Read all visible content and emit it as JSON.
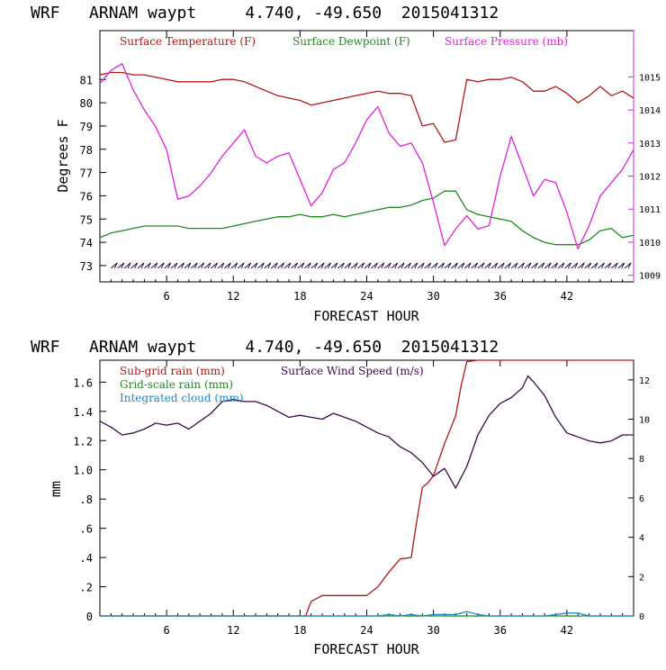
{
  "colors": {
    "temperature": "#b01818",
    "dewpoint": "#228822",
    "pressure": "#e020e0",
    "subgrid_rain": "#b01818",
    "grid_rain": "#228822",
    "cloud": "#1a88c8",
    "wind": "#3c0a4a",
    "axis_left": "#000000",
    "axis_right": "#e020e0"
  },
  "chart_data": [
    {
      "type": "line",
      "title": "WRF   ARNAM waypt     4.740, -49.650  2015041312",
      "xlabel": "FORECAST HOUR",
      "ylabel": "Degrees F",
      "xlim": [
        0,
        48
      ],
      "xticks": [
        6,
        12,
        18,
        24,
        30,
        36,
        42
      ],
      "ylim": [
        72.3,
        83.1
      ],
      "yticks": [
        73,
        74,
        75,
        76,
        77,
        78,
        79,
        80,
        81
      ],
      "y2lim": [
        1008.8,
        1016.4
      ],
      "y2ticks": [
        1009,
        1010,
        1011,
        1012,
        1013,
        1014,
        1015
      ],
      "series": [
        {
          "name": "Surface Temperature (F)",
          "axis": "left",
          "x": [
            0,
            1,
            2,
            3,
            4,
            5,
            6,
            7,
            8,
            9,
            10,
            11,
            12,
            13,
            14,
            15,
            16,
            17,
            18,
            19,
            20,
            21,
            22,
            23,
            24,
            25,
            26,
            27,
            28,
            29,
            30,
            31,
            32,
            33,
            34,
            35,
            36,
            37,
            38,
            39,
            40,
            41,
            42,
            43,
            44,
            45,
            46,
            47,
            48
          ],
          "values": [
            81.2,
            81.3,
            81.3,
            81.2,
            81.2,
            81.1,
            81.0,
            80.9,
            80.9,
            80.9,
            80.9,
            81.0,
            81.0,
            80.9,
            80.7,
            80.5,
            80.3,
            80.2,
            80.1,
            79.9,
            80.0,
            80.1,
            80.2,
            80.3,
            80.4,
            80.5,
            80.4,
            80.4,
            80.3,
            79.0,
            79.1,
            78.3,
            78.4,
            81.0,
            80.9,
            81.0,
            81.0,
            81.1,
            80.9,
            80.5,
            80.5,
            80.7,
            80.4,
            80.0,
            80.3,
            80.7,
            80.3,
            80.5,
            80.2
          ]
        },
        {
          "name": "Surface Dewpoint (F)",
          "axis": "left",
          "x": [
            0,
            1,
            2,
            3,
            4,
            5,
            6,
            7,
            8,
            9,
            10,
            11,
            12,
            13,
            14,
            15,
            16,
            17,
            18,
            19,
            20,
            21,
            22,
            23,
            24,
            25,
            26,
            27,
            28,
            29,
            30,
            31,
            32,
            33,
            34,
            35,
            36,
            37,
            38,
            39,
            40,
            41,
            42,
            43,
            44,
            45,
            46,
            47,
            48
          ],
          "values": [
            74.2,
            74.4,
            74.5,
            74.6,
            74.7,
            74.7,
            74.7,
            74.7,
            74.6,
            74.6,
            74.6,
            74.6,
            74.7,
            74.8,
            74.9,
            75.0,
            75.1,
            75.1,
            75.2,
            75.1,
            75.1,
            75.2,
            75.1,
            75.2,
            75.3,
            75.4,
            75.5,
            75.5,
            75.6,
            75.8,
            75.9,
            76.2,
            76.2,
            75.4,
            75.2,
            75.1,
            75.0,
            74.9,
            74.5,
            74.2,
            74.0,
            73.9,
            73.9,
            73.9,
            74.1,
            74.5,
            74.6,
            74.2,
            74.3
          ]
        },
        {
          "name": "Surface Pressure (mb)",
          "axis": "right",
          "x": [
            0,
            1,
            2,
            3,
            4,
            5,
            6,
            7,
            8,
            9,
            10,
            11,
            12,
            13,
            14,
            15,
            16,
            17,
            18,
            19,
            20,
            21,
            22,
            23,
            24,
            25,
            26,
            27,
            28,
            29,
            30,
            31,
            32,
            33,
            34,
            35,
            36,
            37,
            38,
            39,
            40,
            41,
            42,
            43,
            44,
            45,
            46,
            47,
            48
          ],
          "values": [
            1014.8,
            1015.2,
            1015.4,
            1014.6,
            1014.0,
            1013.5,
            1012.8,
            1011.3,
            1011.4,
            1011.7,
            1012.1,
            1012.6,
            1013.0,
            1013.4,
            1012.6,
            1012.4,
            1012.6,
            1012.7,
            1011.9,
            1011.1,
            1011.5,
            1012.2,
            1012.4,
            1013.0,
            1013.7,
            1014.1,
            1013.3,
            1012.9,
            1013.0,
            1012.4,
            1011.2,
            1009.9,
            1010.4,
            1010.8,
            1010.4,
            1010.5,
            1012.0,
            1013.2,
            1012.3,
            1011.4,
            1011.9,
            1011.8,
            1010.9,
            1009.8,
            1010.5,
            1011.4,
            1011.8,
            1012.2,
            1012.8
          ]
        }
      ],
      "annotations": [
        "wind barbs along 73 °F line"
      ]
    },
    {
      "type": "line",
      "title": "WRF   ARNAM waypt     4.740, -49.650  2015041312",
      "xlabel": "FORECAST HOUR",
      "ylabel": "mm",
      "xlim": [
        0,
        48
      ],
      "xticks": [
        6,
        12,
        18,
        24,
        30,
        36,
        42
      ],
      "ylim": [
        0,
        1.75
      ],
      "yticks": [
        0,
        0.2,
        0.4,
        0.6,
        0.8,
        1.0,
        1.2,
        1.4,
        1.6
      ],
      "ytick_labels": [
        "0",
        ".2",
        ".4",
        ".6",
        ".8",
        "1.0",
        "1.2",
        "1.4",
        "1.6"
      ],
      "y2lim": [
        0,
        13.0
      ],
      "y2ticks": [
        0,
        2,
        4,
        6,
        8,
        10,
        12
      ],
      "series": [
        {
          "name": "Sub-grid rain (mm)",
          "axis": "left",
          "x": [
            0,
            18.5,
            19,
            20,
            21,
            22,
            23,
            24,
            25,
            26,
            27,
            28,
            28.5,
            29,
            29.5,
            30,
            31,
            32,
            32.5,
            33,
            34,
            36,
            40,
            44,
            48
          ],
          "values": [
            0,
            0,
            0.1,
            0.14,
            0.14,
            0.14,
            0.14,
            0.14,
            0.2,
            0.3,
            0.39,
            0.4,
            0.65,
            0.88,
            0.91,
            0.96,
            1.18,
            1.37,
            1.58,
            1.74,
            1.75,
            1.75,
            1.75,
            1.75,
            1.75
          ]
        },
        {
          "name": "Grid-scale rain (mm)",
          "axis": "left",
          "x": [
            0,
            48
          ],
          "values": [
            0,
            0
          ]
        },
        {
          "name": "Integrated cloud (mm)",
          "axis": "left",
          "x": [
            0,
            25,
            26,
            27,
            28,
            29,
            30,
            31,
            32,
            33,
            34,
            35,
            36,
            40,
            42,
            43,
            44,
            48
          ],
          "values": [
            0,
            0,
            0.01,
            0,
            0.01,
            0,
            0.01,
            0.01,
            0.01,
            0.03,
            0.01,
            0,
            0,
            0,
            0.02,
            0.02,
            0,
            0
          ]
        },
        {
          "name": "Surface Wind Speed (m/s)",
          "axis": "right",
          "x": [
            0,
            1,
            2,
            3,
            4,
            5,
            6,
            7,
            8,
            9,
            10,
            11,
            12,
            13,
            14,
            15,
            16,
            17,
            18,
            19,
            20,
            21,
            22,
            23,
            24,
            25,
            26,
            27,
            28,
            29,
            30,
            31,
            32,
            33,
            34,
            35,
            36,
            37,
            38,
            38.5,
            39,
            40,
            41,
            42,
            43,
            44,
            45,
            46,
            47,
            48
          ],
          "values": [
            9.9,
            9.6,
            9.2,
            9.3,
            9.5,
            9.8,
            9.7,
            9.8,
            9.5,
            9.9,
            10.3,
            10.9,
            11.0,
            10.9,
            10.9,
            10.7,
            10.4,
            10.1,
            10.2,
            10.1,
            10.0,
            10.3,
            10.1,
            9.9,
            9.6,
            9.3,
            9.1,
            8.6,
            8.3,
            7.8,
            7.1,
            7.5,
            6.5,
            7.6,
            9.2,
            10.2,
            10.8,
            11.1,
            11.6,
            12.2,
            11.9,
            11.2,
            10.1,
            9.3,
            9.1,
            8.9,
            8.8,
            8.9,
            9.2,
            9.2
          ]
        }
      ]
    }
  ]
}
